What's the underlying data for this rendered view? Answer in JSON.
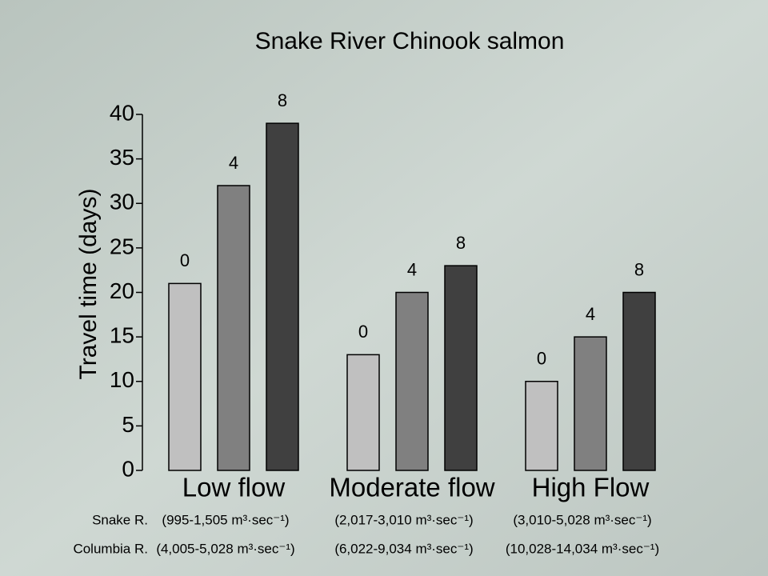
{
  "chart_data": {
    "type": "bar",
    "title": "Snake River Chinook salmon",
    "y_label": "Travel time (days)",
    "categories": [
      "Low flow",
      "Moderate flow",
      "High Flow"
    ],
    "series": [
      {
        "name": "0",
        "color": "#c0c0c0",
        "values": [
          21,
          13,
          10
        ]
      },
      {
        "name": "4",
        "color": "#808080",
        "values": [
          32,
          20,
          15
        ]
      },
      {
        "name": "8",
        "color": "#404040",
        "values": [
          39,
          23,
          20
        ]
      }
    ],
    "ylim": [
      0,
      40
    ],
    "yticks": [
      0,
      5,
      10,
      15,
      20,
      25,
      30,
      35,
      40
    ],
    "grid": false,
    "flow_rows": [
      {
        "label": "Snake R.",
        "ranges": [
          "(995-1,505 m³·sec⁻¹)",
          "(2,017-3,010 m³·sec⁻¹)",
          "(3,010-5,028 m³·sec⁻¹)"
        ]
      },
      {
        "label": "Columbia R.",
        "ranges": [
          "(4,005-5,028 m³·sec⁻¹)",
          "(6,022-9,034 m³·sec⁻¹)",
          "(10,028-14,034 m³·sec⁻¹)"
        ]
      }
    ]
  }
}
